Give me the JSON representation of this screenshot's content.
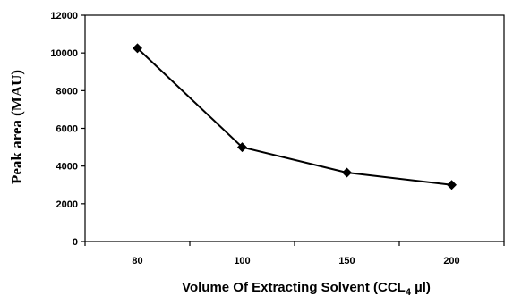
{
  "chart_data": {
    "type": "line",
    "title": "",
    "ylabel": "Peak area (MAU)",
    "xlabel": {
      "prefix": "Volume Of Extracting Solvent (CCL",
      "subscript": "4",
      "suffix": " µl)"
    },
    "categories": [
      "80",
      "100",
      "150",
      "200"
    ],
    "series": [
      {
        "values": [
          10250,
          5000,
          3650,
          3000
        ],
        "color": "#000000",
        "marker": "diamond"
      }
    ],
    "ylim": [
      0,
      12000
    ],
    "yticks": [
      "0",
      "2000",
      "4000",
      "6000",
      "8000",
      "10000",
      "12000"
    ],
    "grid": false,
    "legend": "none"
  }
}
